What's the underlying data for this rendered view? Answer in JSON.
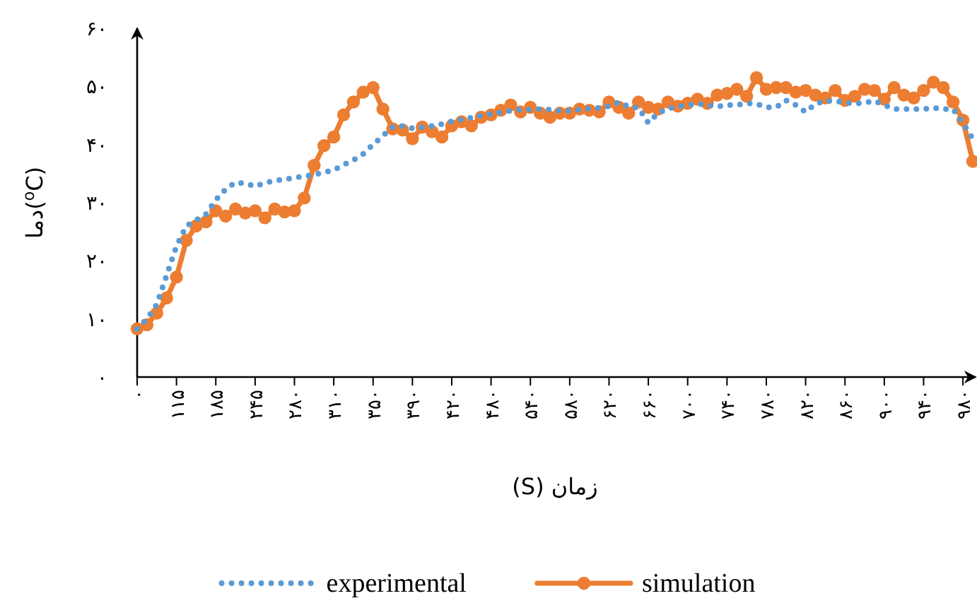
{
  "chart_data": {
    "type": "line",
    "xlabel": "زمان (S)",
    "ylabel": "دما($^{o}$C)",
    "categories": [
      "۰",
      null,
      null,
      null,
      "۱۱۵",
      null,
      null,
      null,
      "۱۸۵",
      null,
      null,
      null,
      "۲۴۵",
      null,
      null,
      null,
      "۲۸۰",
      null,
      null,
      null,
      "۳۱۰",
      null,
      null,
      null,
      "۳۵۰",
      null,
      null,
      null,
      "۳۹۰",
      null,
      null,
      null,
      "۴۲۰",
      null,
      null,
      null,
      "۴۸۰",
      null,
      null,
      null,
      "۵۴۰",
      null,
      null,
      null,
      "۵۸۰",
      null,
      null,
      null,
      "۶۲۰",
      null,
      null,
      null,
      "۶۶۰",
      null,
      null,
      null,
      "۷۰۰",
      null,
      null,
      null,
      "۷۴۰",
      null,
      null,
      null,
      "۷۸۰",
      null,
      null,
      null,
      "۸۲۰",
      null,
      null,
      null,
      "۸۶۰",
      null,
      null,
      null,
      "۹۰۰",
      null,
      null,
      null,
      "۹۴۰",
      null,
      null,
      null,
      "۹۸۰",
      null
    ],
    "ylim": [
      0,
      60
    ],
    "yticks": [
      {
        "value": 0,
        "label": "۰"
      },
      {
        "value": 10,
        "label": "۱۰"
      },
      {
        "value": 20,
        "label": "۲۰"
      },
      {
        "value": 30,
        "label": "۳۰"
      },
      {
        "value": 40,
        "label": "۴۰"
      },
      {
        "value": 50,
        "label": "۵۰"
      },
      {
        "value": 60,
        "label": "۶۰"
      }
    ],
    "legend": "bottom",
    "series": [
      {
        "name": "experimental",
        "color": "#5b9bd5",
        "line_style": "dotted",
        "marker": "none",
        "values": [
          8.3,
          10,
          12.5,
          17.5,
          22.5,
          26,
          27,
          28,
          30.5,
          32.3,
          33.5,
          33.3,
          32.8,
          33.4,
          33.8,
          34,
          34.3,
          34.5,
          34.8,
          35.2,
          35.6,
          36.5,
          37.3,
          38.4,
          40,
          41.5,
          43,
          43.2,
          42.8,
          43,
          43.2,
          43.5,
          44,
          44.3,
          44.6,
          45,
          45.3,
          45.5,
          45.8,
          46,
          46,
          46.1,
          46,
          45.8,
          45.8,
          46,
          46.2,
          46.3,
          46.6,
          47.3,
          46.5,
          46.3,
          43.7,
          45.4,
          46.2,
          46.5,
          46.8,
          47,
          46.8,
          46.5,
          46.8,
          46.8,
          47.1,
          47,
          46.4,
          46.4,
          47.6,
          46.8,
          45.6,
          47,
          47.5,
          47.5,
          47.2,
          47,
          47.2,
          47.5,
          46.8,
          46.1,
          46.1,
          46.1,
          46.1,
          46.3,
          46.1,
          46.1,
          43.7,
          41
        ]
      },
      {
        "name": "simulation",
        "color": "#ed7d31",
        "line_style": "solid",
        "marker": "circle",
        "values": [
          8.3,
          9,
          11,
          13.6,
          17.2,
          23.5,
          26,
          26.7,
          28.6,
          27.7,
          28.9,
          28.2,
          28.6,
          27.4,
          28.9,
          28.4,
          28.6,
          30.8,
          36.4,
          39.8,
          41.3,
          45.1,
          47.3,
          49,
          49.8,
          46.1,
          42.7,
          42.5,
          41,
          43,
          42.2,
          41.3,
          43.2,
          43.9,
          43.2,
          44.7,
          45.1,
          45.9,
          46.8,
          45.6,
          46.4,
          45.4,
          44.7,
          45.4,
          45.4,
          46.1,
          45.9,
          45.6,
          47.3,
          46.4,
          45.4,
          47.3,
          46.4,
          46.1,
          47.3,
          46.6,
          47.1,
          47.8,
          47.1,
          48.5,
          48.8,
          49.5,
          48.3,
          51.5,
          49.5,
          49.8,
          49.8,
          49,
          49.3,
          48.5,
          48,
          49.3,
          47.6,
          48.3,
          49.5,
          49.3,
          47.8,
          49.8,
          48.5,
          48,
          49.3,
          50.7,
          49.8,
          47.3,
          44.2,
          37.1
        ]
      }
    ]
  }
}
